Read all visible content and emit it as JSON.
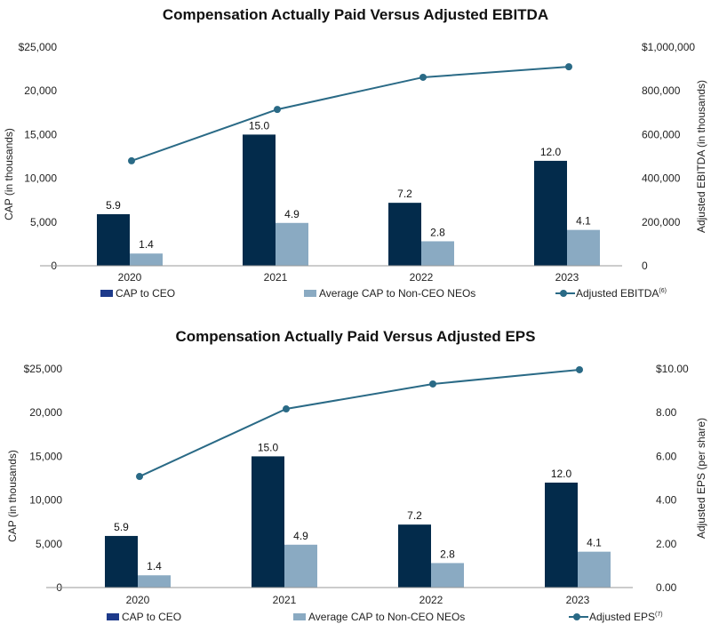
{
  "colors": {
    "ceo": "#032b4b",
    "neo": "#8aaac2",
    "line": "#2a6a86",
    "axis": "#999999"
  },
  "chart_data": [
    {
      "type": "bar",
      "title": "Compensation Actually Paid Versus Adjusted EBITDA",
      "categories": [
        "2020",
        "2021",
        "2022",
        "2023"
      ],
      "ylabel": "CAP (in thousands)",
      "y2label": "Adjusted EBITDA (in thousands)",
      "ylim": [
        0,
        25000
      ],
      "y2lim": [
        0,
        1000000
      ],
      "yticks": [
        "0",
        "5,000",
        "10,000",
        "15,000",
        "20,000",
        "$25,000"
      ],
      "y2ticks": [
        "0",
        "200,000",
        "400,000",
        "600,000",
        "800,000",
        "$1,000,000"
      ],
      "series": [
        {
          "name": "CAP to CEO",
          "type": "bar",
          "values": [
            5900,
            15000,
            7200,
            12000
          ],
          "labels": [
            "5.9",
            "15.0",
            "7.2",
            "12.0"
          ]
        },
        {
          "name": "Average CAP to Non-CEO NEOs",
          "type": "bar",
          "values": [
            1400,
            4900,
            2800,
            4100
          ],
          "labels": [
            "1.4",
            "4.9",
            "2.8",
            "4.1"
          ]
        },
        {
          "name": "Adjusted EBITDA",
          "superscript": "(6)",
          "type": "line",
          "axis": "right",
          "values": [
            480000,
            715000,
            862000,
            910000
          ]
        }
      ],
      "legend": "bottom"
    },
    {
      "type": "bar",
      "title": "Compensation Actually Paid Versus Adjusted EPS",
      "categories": [
        "2020",
        "2021",
        "2022",
        "2023"
      ],
      "ylabel": "CAP (in thousands)",
      "y2label": "Adjusted EPS (per share)",
      "ylim": [
        0,
        25000
      ],
      "y2lim": [
        0,
        10
      ],
      "yticks": [
        "0",
        "5,000",
        "10,000",
        "15,000",
        "20,000",
        "$25,000"
      ],
      "y2ticks": [
        "0.00",
        "2.00",
        "4.00",
        "6.00",
        "8.00",
        "$10.00"
      ],
      "series": [
        {
          "name": "CAP to CEO",
          "type": "bar",
          "values": [
            5900,
            15000,
            7200,
            12000
          ],
          "labels": [
            "5.9",
            "15.0",
            "7.2",
            "12.0"
          ]
        },
        {
          "name": "Average CAP to Non-CEO NEOs",
          "type": "bar",
          "values": [
            1400,
            4900,
            2800,
            4100
          ],
          "labels": [
            "1.4",
            "4.9",
            "2.8",
            "4.1"
          ]
        },
        {
          "name": "Adjusted EPS",
          "superscript": "(7)",
          "type": "line",
          "axis": "right",
          "values": [
            5.08,
            8.17,
            9.31,
            9.96
          ]
        }
      ],
      "legend": "bottom"
    }
  ]
}
